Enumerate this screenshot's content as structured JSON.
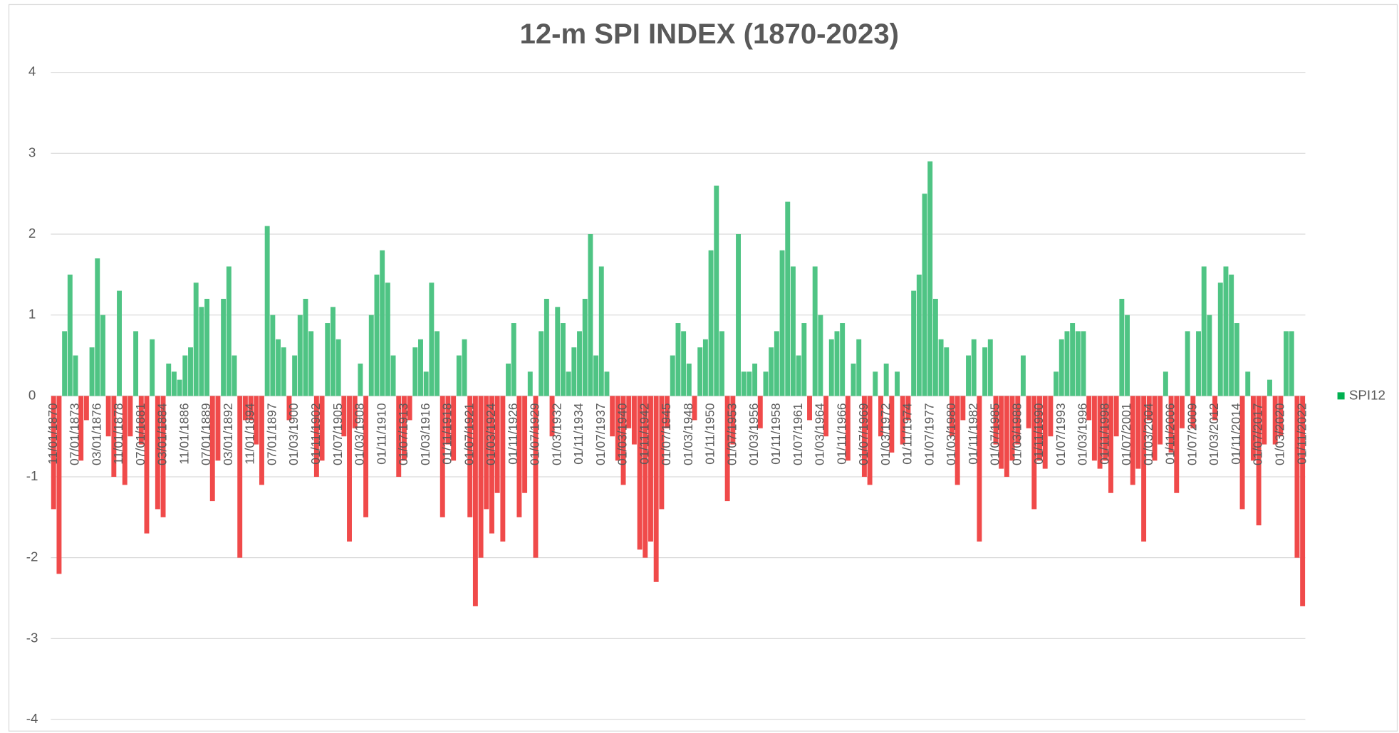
{
  "chart_data": {
    "type": "bar",
    "title": "12-m SPI INDEX (1870-2023)",
    "ylim": [
      -4,
      4
    ],
    "yticks": [
      -4,
      -3,
      -2,
      -1,
      0,
      1,
      2,
      3,
      4
    ],
    "grid": true,
    "legend": "right",
    "color_positive": "#4fc484",
    "color_negative": "#f04a4a",
    "categories": [
      "11/01/1870",
      null,
      null,
      null,
      "07/01/1873",
      null,
      null,
      null,
      "03/01/1876",
      null,
      null,
      null,
      "11/01/1878",
      null,
      null,
      null,
      "07/01/1881",
      null,
      null,
      null,
      "03/01/1884",
      null,
      null,
      null,
      "11/01/1886",
      null,
      null,
      null,
      "07/01/1889",
      null,
      null,
      null,
      "03/01/1892",
      null,
      null,
      null,
      "11/01/1894",
      null,
      null,
      null,
      "07/01/1897",
      null,
      null,
      null,
      "01/03/1900",
      null,
      null,
      null,
      "01/11/1902",
      null,
      null,
      null,
      "01/07/1905",
      null,
      null,
      null,
      "01/03/1908",
      null,
      null,
      null,
      "01/11/1910",
      null,
      null,
      null,
      "01/07/1913",
      null,
      null,
      null,
      "01/03/1916",
      null,
      null,
      null,
      "01/11/1918",
      null,
      null,
      null,
      "01/07/1921",
      null,
      null,
      null,
      "01/03/1924",
      null,
      null,
      null,
      "01/11/1926",
      null,
      null,
      null,
      "01/07/1929",
      null,
      null,
      null,
      "01/03/1932",
      null,
      null,
      null,
      "01/11/1934",
      null,
      null,
      null,
      "01/07/1937",
      null,
      null,
      null,
      "01/03/1940",
      null,
      null,
      null,
      "01/11/1942",
      null,
      null,
      null,
      "01/07/1945",
      null,
      null,
      null,
      "01/03/1948",
      null,
      null,
      null,
      "01/11/1950",
      null,
      null,
      null,
      "01/07/1953",
      null,
      null,
      null,
      "01/03/1956",
      null,
      null,
      null,
      "01/11/1958",
      null,
      null,
      null,
      "01/07/1961",
      null,
      null,
      null,
      "01/03/1964",
      null,
      null,
      null,
      "01/11/1966",
      null,
      null,
      null,
      "01/07/1969",
      null,
      null,
      null,
      "01/03/1972",
      null,
      null,
      null,
      "01/11/1974",
      null,
      null,
      null,
      "01/07/1977",
      null,
      null,
      null,
      "01/03/1980",
      null,
      null,
      null,
      "01/11/1982",
      null,
      null,
      null,
      "01/07/1985",
      null,
      null,
      null,
      "01/03/1988",
      null,
      null,
      null,
      "01/11/1990",
      null,
      null,
      null,
      "01/07/1993",
      null,
      null,
      null,
      "01/03/1996",
      null,
      null,
      null,
      "01/11/1998",
      null,
      null,
      null,
      "01/07/2001",
      null,
      null,
      null,
      "01/03/2004",
      null,
      null,
      null,
      "01/11/2006",
      null,
      null,
      null,
      "01/07/2009",
      null,
      null,
      null,
      "01/03/2012",
      null,
      null,
      null,
      "01/11/2014",
      null,
      null,
      null,
      "01/07/2017",
      null,
      null,
      null,
      "01/03/2020",
      null,
      null,
      null,
      "01/11/2022"
    ],
    "series": [
      {
        "name": "SPI12",
        "color": "#00b050",
        "values": [
          -1.4,
          -2.2,
          0.8,
          1.5,
          0.5,
          -0.8,
          -0.3,
          0.6,
          1.7,
          1.0,
          -0.5,
          -1.0,
          1.3,
          -1.1,
          -0.5,
          0.8,
          -0.6,
          -1.7,
          0.7,
          -1.4,
          -1.5,
          0.4,
          0.3,
          0.2,
          0.5,
          0.6,
          1.4,
          1.1,
          1.2,
          -1.3,
          -0.8,
          1.2,
          1.6,
          0.5,
          -2.0,
          -0.3,
          -0.3,
          -0.6,
          -1.1,
          2.1,
          1.0,
          0.7,
          0.6,
          -0.3,
          0.5,
          1.0,
          1.2,
          0.8,
          -1.0,
          -0.8,
          0.9,
          1.1,
          0.7,
          -0.5,
          -1.8,
          -0.4,
          0.4,
          -1.5,
          1.0,
          1.5,
          1.8,
          1.4,
          0.5,
          -1.0,
          -0.8,
          -0.3,
          0.6,
          0.7,
          0.3,
          1.4,
          0.8,
          -1.5,
          -0.6,
          -0.8,
          0.5,
          0.7,
          -1.5,
          -2.6,
          -2.0,
          -1.4,
          -1.7,
          -1.2,
          -1.8,
          0.4,
          0.9,
          -1.5,
          -1.2,
          0.3,
          -2.0,
          0.8,
          1.2,
          -0.5,
          1.1,
          0.9,
          0.3,
          0.6,
          0.8,
          1.2,
          2.0,
          0.5,
          1.6,
          0.3,
          -0.5,
          -0.8,
          -1.1,
          -0.4,
          -0.6,
          -1.9,
          -2.0,
          -1.8,
          -2.3,
          -1.4,
          -0.4,
          0.5,
          0.9,
          0.8,
          0.4,
          -0.3,
          0.6,
          0.7,
          1.8,
          2.6,
          0.8,
          -1.3,
          -0.6,
          2.0,
          0.3,
          0.3,
          0.4,
          -0.4,
          0.3,
          0.6,
          0.8,
          1.8,
          2.4,
          1.6,
          0.5,
          0.9,
          -0.3,
          1.6,
          1.0,
          -0.5,
          0.7,
          0.8,
          0.9,
          -0.8,
          0.4,
          0.7,
          -1.0,
          -1.1,
          0.3,
          -0.5,
          0.4,
          -0.7,
          0.3,
          -0.6,
          -0.3,
          1.3,
          1.5,
          2.5,
          2.9,
          1.2,
          0.7,
          0.6,
          -0.5,
          -1.1,
          -0.3,
          0.5,
          0.7,
          -1.8,
          0.6,
          0.7,
          -0.6,
          -0.9,
          -1.0,
          -0.8,
          -0.6,
          0.5,
          -0.4,
          -1.4,
          -0.8,
          -0.9,
          -0.5,
          0.3,
          0.7,
          0.8,
          0.9,
          0.8,
          0.8,
          -0.3,
          -0.8,
          -0.9,
          -0.8,
          -1.2,
          -0.5,
          1.2,
          1.0,
          -1.1,
          -0.9,
          -1.8,
          -0.3,
          -0.8,
          -0.6,
          0.3,
          -0.7,
          -1.2,
          -0.4,
          0.8,
          -0.4,
          0.8,
          1.6,
          1.0,
          -0.3,
          1.4,
          1.6,
          1.5,
          0.9,
          -1.4,
          0.3,
          -0.8,
          -1.6,
          -0.6,
          0.2,
          -0.6,
          -0.5,
          0.8,
          0.8,
          -2.0,
          -2.6
        ]
      }
    ]
  }
}
